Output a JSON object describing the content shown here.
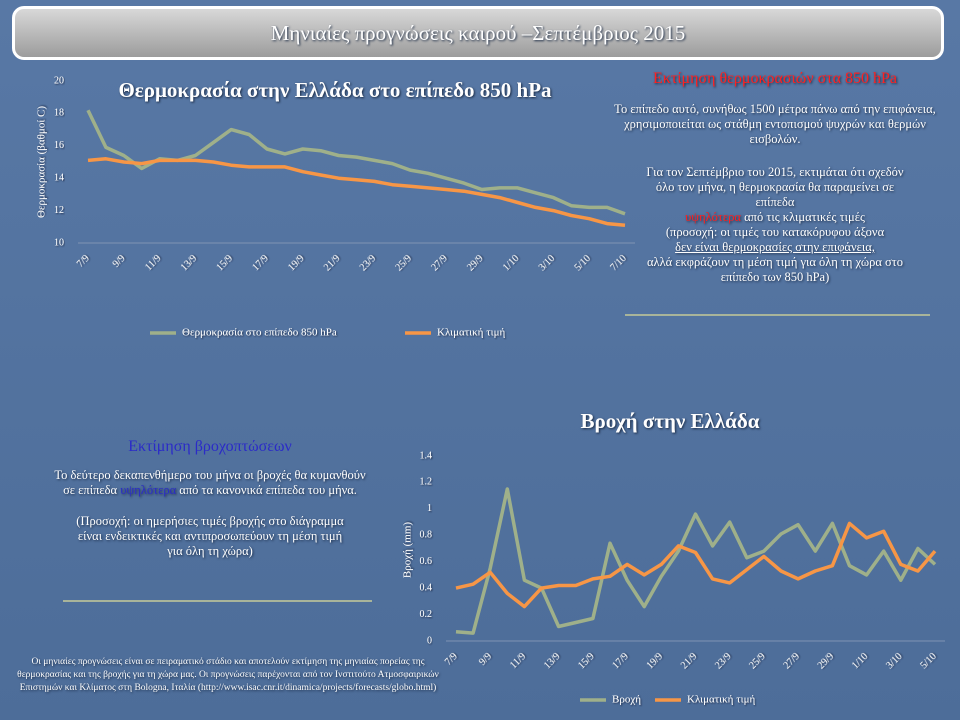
{
  "header": {
    "title": "Μηνιαίες προγνώσεις καιρού –Σεπτέμβριος 2015"
  },
  "chart_data": [
    {
      "type": "line",
      "title": "Θερμοκρασία στην Ελλάδα στο επίπεδο 850 hPa",
      "ylabel": "Θερμοκρασία (βαθμοί C)",
      "categories": [
        "7/9",
        null,
        "9/9",
        null,
        "11/9",
        null,
        "13/9",
        null,
        "15/9",
        null,
        "17/9",
        null,
        "19/9",
        null,
        "21/9",
        null,
        "23/9",
        null,
        "25/9",
        null,
        "27/9",
        null,
        "29/9",
        null,
        "1/10",
        null,
        "3/10",
        null,
        "5/10",
        null,
        "7/10"
      ],
      "series": [
        {
          "name": "Θερμοκρασία στο επίπεδο 850 hPa",
          "color": "#9fb08a",
          "values": [
            18.2,
            15.9,
            15.4,
            14.6,
            15.2,
            15.1,
            15.4,
            16.2,
            17.0,
            16.7,
            15.8,
            15.5,
            15.8,
            15.7,
            15.4,
            15.3,
            15.1,
            14.9,
            14.5,
            14.3,
            14.0,
            13.7,
            13.3,
            13.4,
            13.4,
            13.1,
            12.8,
            12.3,
            12.2,
            12.2,
            11.8
          ]
        },
        {
          "name": "Κλιματική τιμή",
          "color": "#f79646",
          "values": [
            15.1,
            15.2,
            15.0,
            14.9,
            15.1,
            15.1,
            15.1,
            15.0,
            14.8,
            14.7,
            14.7,
            14.7,
            14.4,
            14.2,
            14.0,
            13.9,
            13.8,
            13.6,
            13.5,
            13.4,
            13.3,
            13.2,
            13.0,
            12.8,
            12.5,
            12.2,
            12.0,
            11.7,
            11.5,
            11.2,
            11.1
          ]
        }
      ],
      "ylim": [
        10,
        20
      ],
      "yticks": [
        10,
        12,
        14,
        16,
        18,
        20
      ]
    },
    {
      "type": "line",
      "title": "Βροχή στην Ελλάδα",
      "ylabel": "Βροχή (mm)",
      "categories": [
        "7/9",
        null,
        "9/9",
        null,
        "11/9",
        null,
        "13/9",
        null,
        "15/9",
        null,
        "17/9",
        null,
        "19/9",
        null,
        "21/9",
        null,
        "23/9",
        null,
        "25/9",
        null,
        "27/9",
        null,
        "29/9",
        null,
        "1/10",
        null,
        "3/10",
        null,
        "5/10"
      ],
      "series": [
        {
          "name": "Βροχή",
          "color": "#9fb08a",
          "values": [
            0.07,
            0.06,
            0.55,
            1.15,
            0.46,
            0.4,
            0.11,
            0.14,
            0.17,
            0.74,
            0.46,
            0.26,
            0.49,
            0.68,
            0.96,
            0.72,
            0.9,
            0.63,
            0.68,
            0.81,
            0.88,
            0.68,
            0.89,
            0.57,
            0.5,
            0.68,
            0.46,
            0.7,
            0.58
          ]
        },
        {
          "name": "Κλιματική τιμή",
          "color": "#f79646",
          "values": [
            0.4,
            0.43,
            0.52,
            0.36,
            0.26,
            0.4,
            0.42,
            0.42,
            0.47,
            0.49,
            0.58,
            0.5,
            0.58,
            0.72,
            0.67,
            0.47,
            0.44,
            0.54,
            0.64,
            0.53,
            0.47,
            0.53,
            0.57,
            0.89,
            0.78,
            0.83,
            0.58,
            0.53,
            0.68
          ]
        }
      ],
      "ylim": [
        0,
        1.4
      ],
      "yticks": [
        0,
        0.2,
        0.4,
        0.6,
        0.8,
        1,
        1.2,
        1.4
      ]
    }
  ],
  "temperature_text": {
    "heading": "Εκτίμηση θερμοκρασιών στα 850 hPa",
    "paragraph1": "Το επίπεδο αυτό, συνήθως 1500 μέτρα πάνω από την επιφάνεια, χρησιμοποιείται ως στάθμη εντοπισμού ψυχρών και θερμών εισβολών.",
    "paragraph2": [
      "Για τον Σεπτέμβριο του 2015, εκτιμάται ότι σχεδόν όλο τον μήνα, η θερμοκρασία θα παραμείνει σε επίπεδα",
      "υψηλότερα",
      "από τις κλιματικές τιμές",
      "(προσοχή: οι τιμές του κατακόρυφου άξονα",
      "δεν είναι θερμοκρασίες στην επιφάνεια,",
      "αλλά εκφράζουν τη μέση τιμή για όλη τη χώρα στο επίπεδο των 850 hPa)"
    ]
  },
  "rain_text": {
    "heading": "Εκτίμηση βροχοπτώσεων",
    "paragraph1": [
      "Το δεύτερο δεκαπενθήμερο του μήνα οι βροχές θα κυμανθούν σε επίπεδα",
      "υψηλότερα",
      "από τα κανονικά επίπεδα του μήνα."
    ],
    "paragraph2": "(Προσοχή: οι ημερήσιες τιμές βροχής στο διάγραμμα είναι ενδεικτικές και αντιπροσωπεύουν τη μέση τιμή για όλη τη χώρα)"
  },
  "footer": "Οι μηνιαίες προγνώσεις είναι σε πειραματικό στάδιο και αποτελούν εκτίμηση της μηνιαίας πορείας της θερμοκρασίας και της βροχής για τη χώρα μας. Οι προγνώσεις παρέχονται από τον Ινστιτούτο Ατμοσφαιρικών Επιστημών και Κλίματος στη Bologna, Ιταλία (http://www.isac.cnr.it/dinamica/projects/forecasts/globo.html)"
}
